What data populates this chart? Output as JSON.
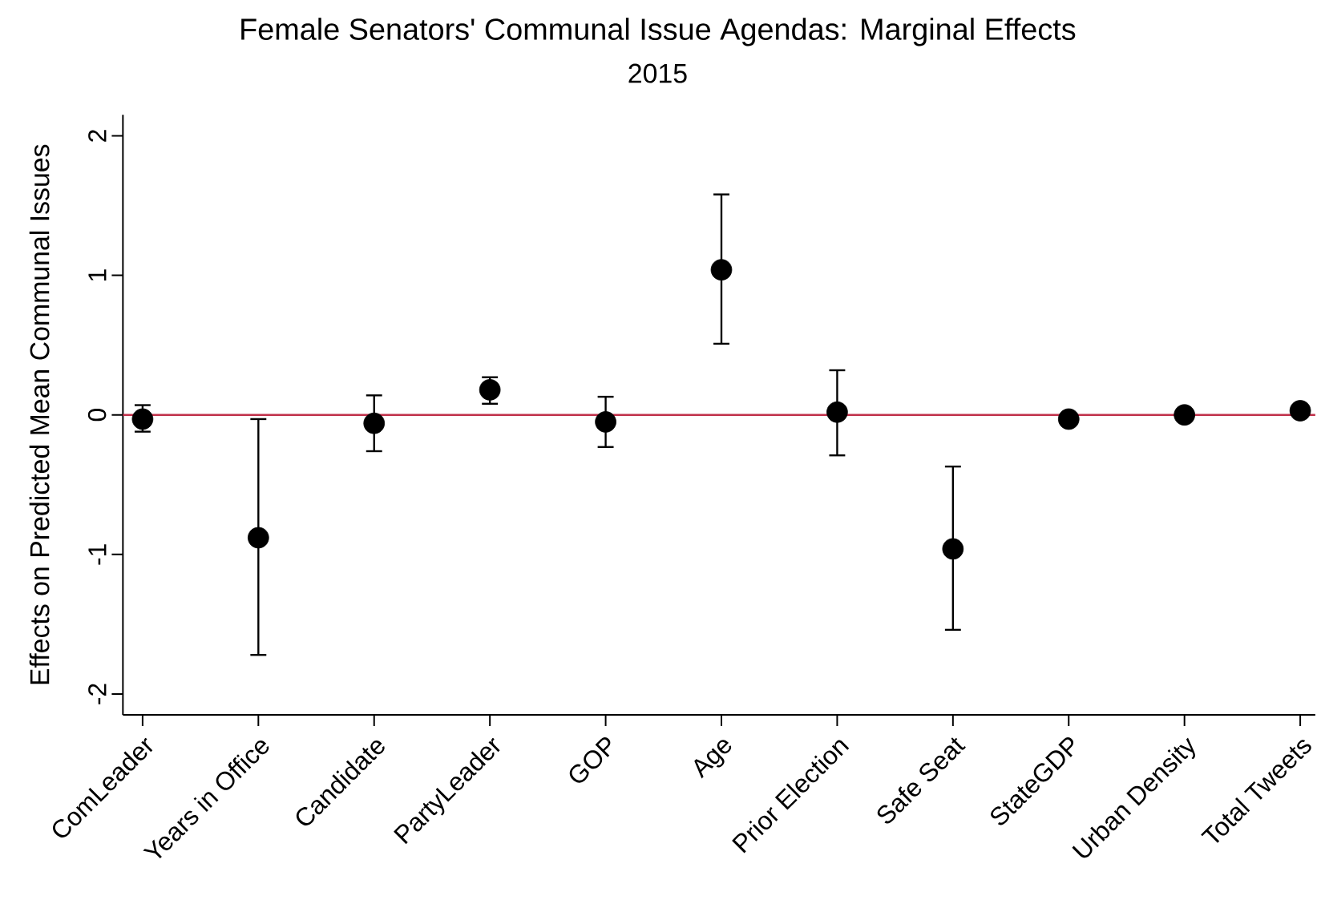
{
  "chart_data": {
    "type": "scatter",
    "title": "Female Senators' Communal Issue Agendas: Marginal Effects",
    "subtitle": "2015",
    "ylabel": "Effects on Predicted Mean Communal Issues",
    "categories": [
      "ComLeader",
      "Years in Office",
      "Candidate",
      "PartyLeader",
      "GOP",
      "Age",
      "Prior Election",
      "Safe Seat",
      "StateGDP",
      "Urban Density",
      "Total Tweets"
    ],
    "series": [
      {
        "color": "#000000",
        "values": [
          -0.03,
          -0.88,
          -0.06,
          0.18,
          -0.05,
          1.04,
          0.02,
          -0.96,
          -0.03,
          0.0,
          0.03
        ],
        "errors": [
          [
            -0.12,
            0.07
          ],
          [
            -1.72,
            -0.03
          ],
          [
            -0.26,
            0.14
          ],
          [
            0.08,
            0.27
          ],
          [
            -0.23,
            0.13
          ],
          [
            0.51,
            1.58
          ],
          [
            -0.29,
            0.32
          ],
          [
            -1.54,
            -0.37
          ],
          null,
          null,
          [
            0.0,
            0.06
          ]
        ]
      }
    ],
    "ylim": [
      -2.15,
      2.15
    ],
    "yticks": [
      -2,
      -1,
      0,
      1,
      2
    ],
    "marker": "circle",
    "ref_lines": [
      {
        "axis": "y",
        "value": 0,
        "color": "#c0304a"
      }
    ]
  }
}
